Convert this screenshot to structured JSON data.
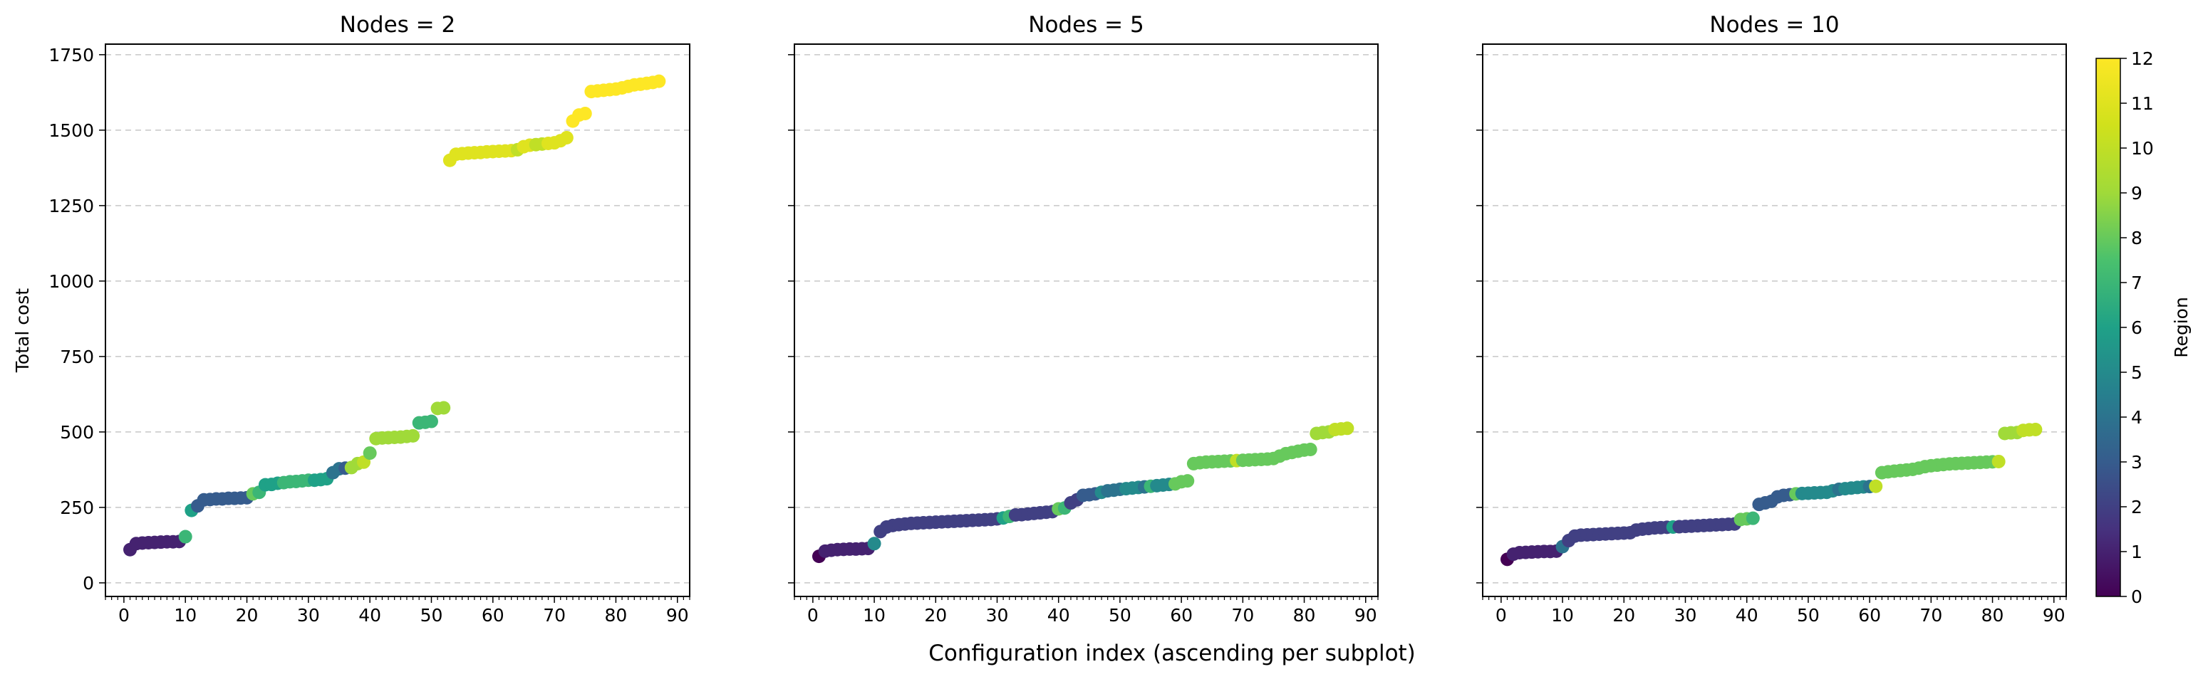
{
  "figure": {
    "supxlabel": "Configuration index (ascending per subplot)",
    "ylabel": "Total cost",
    "colorbar_label": "Region"
  },
  "chart_data": [
    {
      "type": "scatter",
      "title": "Nodes = 2",
      "xlabel": "",
      "ylabel": "Total cost",
      "xlim": [
        -3,
        92
      ],
      "ylim": [
        -45,
        1785
      ],
      "xticks": [
        0,
        10,
        20,
        30,
        40,
        50,
        60,
        70,
        80,
        90
      ],
      "yticks": [
        0,
        250,
        500,
        750,
        1000,
        1250,
        1500,
        1750
      ],
      "grid": "y-dashed",
      "colormap": "viridis",
      "color_range": [
        0,
        12
      ],
      "points": [
        [
          1,
          110,
          1
        ],
        [
          2,
          130,
          1
        ],
        [
          3,
          132,
          1
        ],
        [
          4,
          133,
          1
        ],
        [
          5,
          134,
          1
        ],
        [
          6,
          135,
          1
        ],
        [
          7,
          136,
          1
        ],
        [
          8,
          136,
          1
        ],
        [
          9,
          137,
          1
        ],
        [
          10,
          153,
          7
        ],
        [
          11,
          240,
          6
        ],
        [
          12,
          255,
          3
        ],
        [
          13,
          275,
          3
        ],
        [
          14,
          276,
          3
        ],
        [
          15,
          278,
          3
        ],
        [
          16,
          278,
          3
        ],
        [
          17,
          280,
          3
        ],
        [
          18,
          280,
          3
        ],
        [
          19,
          281,
          3
        ],
        [
          20,
          282,
          3
        ],
        [
          21,
          295,
          8
        ],
        [
          22,
          300,
          7
        ],
        [
          23,
          325,
          6
        ],
        [
          24,
          326,
          6
        ],
        [
          25,
          330,
          6
        ],
        [
          26,
          332,
          7
        ],
        [
          27,
          335,
          7
        ],
        [
          28,
          336,
          7
        ],
        [
          29,
          338,
          7
        ],
        [
          30,
          340,
          7
        ],
        [
          31,
          340,
          6
        ],
        [
          32,
          342,
          6
        ],
        [
          33,
          345,
          6
        ],
        [
          34,
          365,
          4
        ],
        [
          35,
          378,
          4
        ],
        [
          36,
          380,
          3
        ],
        [
          37,
          382,
          9
        ],
        [
          38,
          395,
          9
        ],
        [
          39,
          400,
          10
        ],
        [
          40,
          430,
          8
        ],
        [
          41,
          478,
          9
        ],
        [
          42,
          480,
          9
        ],
        [
          43,
          481,
          9
        ],
        [
          44,
          482,
          9
        ],
        [
          45,
          483,
          9
        ],
        [
          46,
          485,
          9
        ],
        [
          47,
          487,
          9
        ],
        [
          48,
          530,
          7
        ],
        [
          49,
          532,
          7
        ],
        [
          50,
          535,
          7
        ],
        [
          51,
          578,
          9
        ],
        [
          52,
          580,
          9
        ],
        [
          53,
          1400,
          11
        ],
        [
          54,
          1420,
          11
        ],
        [
          55,
          1422,
          11
        ],
        [
          56,
          1424,
          11
        ],
        [
          57,
          1425,
          11
        ],
        [
          58,
          1426,
          11
        ],
        [
          59,
          1428,
          11
        ],
        [
          60,
          1429,
          11
        ],
        [
          61,
          1430,
          11
        ],
        [
          62,
          1431,
          11
        ],
        [
          63,
          1432,
          11
        ],
        [
          64,
          1435,
          10
        ],
        [
          65,
          1445,
          11
        ],
        [
          66,
          1450,
          11
        ],
        [
          67,
          1452,
          10
        ],
        [
          68,
          1454,
          10
        ],
        [
          69,
          1456,
          11
        ],
        [
          70,
          1458,
          11
        ],
        [
          71,
          1465,
          11
        ],
        [
          72,
          1475,
          11
        ],
        [
          73,
          1530,
          12
        ],
        [
          74,
          1550,
          12
        ],
        [
          75,
          1555,
          12
        ],
        [
          76,
          1628,
          12
        ],
        [
          77,
          1630,
          12
        ],
        [
          78,
          1632,
          12
        ],
        [
          79,
          1634,
          12
        ],
        [
          80,
          1636,
          12
        ],
        [
          81,
          1640,
          12
        ],
        [
          82,
          1645,
          12
        ],
        [
          83,
          1650,
          12
        ],
        [
          84,
          1652,
          12
        ],
        [
          85,
          1655,
          12
        ],
        [
          86,
          1658,
          12
        ],
        [
          87,
          1662,
          12
        ]
      ]
    },
    {
      "type": "scatter",
      "title": "Nodes = 5",
      "xlabel": "",
      "ylabel": "",
      "xlim": [
        -3,
        92
      ],
      "ylim": [
        -45,
        1785
      ],
      "xticks": [
        0,
        10,
        20,
        30,
        40,
        50,
        60,
        70,
        80,
        90
      ],
      "yticks": [
        0,
        250,
        500,
        750,
        1000,
        1250,
        1500,
        1750
      ],
      "grid": "y-dashed",
      "colormap": "viridis",
      "color_range": [
        0,
        12
      ],
      "points": [
        [
          1,
          88,
          0
        ],
        [
          2,
          105,
          1
        ],
        [
          3,
          108,
          1
        ],
        [
          4,
          110,
          1
        ],
        [
          5,
          111,
          1
        ],
        [
          6,
          112,
          1
        ],
        [
          7,
          112,
          1
        ],
        [
          8,
          113,
          1
        ],
        [
          9,
          114,
          1
        ],
        [
          10,
          130,
          5
        ],
        [
          11,
          170,
          2
        ],
        [
          12,
          185,
          2
        ],
        [
          13,
          190,
          2
        ],
        [
          14,
          193,
          2
        ],
        [
          15,
          195,
          2
        ],
        [
          16,
          197,
          2
        ],
        [
          17,
          198,
          2
        ],
        [
          18,
          199,
          2
        ],
        [
          19,
          200,
          2
        ],
        [
          20,
          201,
          2
        ],
        [
          21,
          202,
          2
        ],
        [
          22,
          203,
          2
        ],
        [
          23,
          204,
          2
        ],
        [
          24,
          205,
          2
        ],
        [
          25,
          206,
          2
        ],
        [
          26,
          207,
          2
        ],
        [
          27,
          208,
          2
        ],
        [
          28,
          209,
          2
        ],
        [
          29,
          210,
          2
        ],
        [
          30,
          212,
          2
        ],
        [
          31,
          215,
          6
        ],
        [
          32,
          220,
          7
        ],
        [
          33,
          225,
          2
        ],
        [
          34,
          226,
          2
        ],
        [
          35,
          228,
          2
        ],
        [
          36,
          230,
          2
        ],
        [
          37,
          232,
          2
        ],
        [
          38,
          234,
          2
        ],
        [
          39,
          236,
          2
        ],
        [
          40,
          245,
          8
        ],
        [
          41,
          248,
          7
        ],
        [
          42,
          265,
          2
        ],
        [
          43,
          275,
          2
        ],
        [
          44,
          290,
          3
        ],
        [
          45,
          292,
          3
        ],
        [
          46,
          295,
          3
        ],
        [
          47,
          300,
          5
        ],
        [
          48,
          305,
          4
        ],
        [
          49,
          307,
          4
        ],
        [
          50,
          310,
          4
        ],
        [
          51,
          312,
          5
        ],
        [
          52,
          314,
          5
        ],
        [
          53,
          316,
          5
        ],
        [
          54,
          318,
          4
        ],
        [
          55,
          320,
          7
        ],
        [
          56,
          322,
          5
        ],
        [
          57,
          324,
          5
        ],
        [
          58,
          326,
          5
        ],
        [
          59,
          328,
          8
        ],
        [
          60,
          335,
          8
        ],
        [
          61,
          338,
          8
        ],
        [
          62,
          395,
          8
        ],
        [
          63,
          398,
          8
        ],
        [
          64,
          400,
          8
        ],
        [
          65,
          401,
          8
        ],
        [
          66,
          402,
          8
        ],
        [
          67,
          403,
          8
        ],
        [
          68,
          404,
          8
        ],
        [
          69,
          405,
          10
        ],
        [
          70,
          406,
          8
        ],
        [
          71,
          407,
          8
        ],
        [
          72,
          408,
          8
        ],
        [
          73,
          409,
          8
        ],
        [
          74,
          410,
          8
        ],
        [
          75,
          412,
          8
        ],
        [
          76,
          420,
          8
        ],
        [
          77,
          428,
          8
        ],
        [
          78,
          432,
          8
        ],
        [
          79,
          436,
          8
        ],
        [
          80,
          440,
          8
        ],
        [
          81,
          442,
          8
        ],
        [
          82,
          495,
          9
        ],
        [
          83,
          498,
          9
        ],
        [
          84,
          500,
          9
        ],
        [
          85,
          508,
          10
        ],
        [
          86,
          510,
          10
        ],
        [
          87,
          512,
          10
        ]
      ]
    },
    {
      "type": "scatter",
      "title": "Nodes = 10",
      "xlabel": "",
      "ylabel": "",
      "xlim": [
        -3,
        92
      ],
      "ylim": [
        -45,
        1785
      ],
      "xticks": [
        0,
        10,
        20,
        30,
        40,
        50,
        60,
        70,
        80,
        90
      ],
      "yticks": [
        0,
        250,
        500,
        750,
        1000,
        1250,
        1500,
        1750
      ],
      "grid": "y-dashed",
      "colormap": "viridis",
      "color_range": [
        0,
        12
      ],
      "points": [
        [
          1,
          78,
          0
        ],
        [
          2,
          95,
          1
        ],
        [
          3,
          100,
          1
        ],
        [
          4,
          101,
          1
        ],
        [
          5,
          102,
          1
        ],
        [
          6,
          103,
          1
        ],
        [
          7,
          104,
          1
        ],
        [
          8,
          104,
          1
        ],
        [
          9,
          105,
          1
        ],
        [
          10,
          120,
          4
        ],
        [
          11,
          140,
          2
        ],
        [
          12,
          155,
          2
        ],
        [
          13,
          158,
          2
        ],
        [
          14,
          159,
          2
        ],
        [
          15,
          160,
          2
        ],
        [
          16,
          161,
          2
        ],
        [
          17,
          162,
          2
        ],
        [
          18,
          163,
          2
        ],
        [
          19,
          164,
          2
        ],
        [
          20,
          165,
          2
        ],
        [
          21,
          166,
          2
        ],
        [
          22,
          175,
          2
        ],
        [
          23,
          178,
          2
        ],
        [
          24,
          180,
          2
        ],
        [
          25,
          182,
          2
        ],
        [
          26,
          183,
          2
        ],
        [
          27,
          184,
          2
        ],
        [
          28,
          185,
          6
        ],
        [
          29,
          186,
          2
        ],
        [
          30,
          187,
          2
        ],
        [
          31,
          188,
          2
        ],
        [
          32,
          189,
          2
        ],
        [
          33,
          190,
          2
        ],
        [
          34,
          191,
          2
        ],
        [
          35,
          192,
          2
        ],
        [
          36,
          193,
          2
        ],
        [
          37,
          194,
          2
        ],
        [
          38,
          195,
          2
        ],
        [
          39,
          210,
          8
        ],
        [
          40,
          212,
          8
        ],
        [
          41,
          214,
          7
        ],
        [
          42,
          260,
          3
        ],
        [
          43,
          265,
          3
        ],
        [
          44,
          270,
          3
        ],
        [
          45,
          285,
          3
        ],
        [
          46,
          290,
          3
        ],
        [
          47,
          292,
          3
        ],
        [
          48,
          295,
          8
        ],
        [
          49,
          296,
          5
        ],
        [
          50,
          297,
          5
        ],
        [
          51,
          298,
          5
        ],
        [
          52,
          299,
          5
        ],
        [
          53,
          300,
          5
        ],
        [
          54,
          305,
          5
        ],
        [
          55,
          310,
          4
        ],
        [
          56,
          312,
          5
        ],
        [
          57,
          314,
          5
        ],
        [
          58,
          316,
          5
        ],
        [
          59,
          318,
          5
        ],
        [
          60,
          319,
          4
        ],
        [
          61,
          320,
          10
        ],
        [
          62,
          365,
          8
        ],
        [
          63,
          368,
          8
        ],
        [
          64,
          370,
          8
        ],
        [
          65,
          372,
          8
        ],
        [
          66,
          374,
          8
        ],
        [
          67,
          376,
          8
        ],
        [
          68,
          380,
          8
        ],
        [
          69,
          385,
          8
        ],
        [
          70,
          388,
          8
        ],
        [
          71,
          390,
          8
        ],
        [
          72,
          392,
          8
        ],
        [
          73,
          394,
          8
        ],
        [
          74,
          395,
          8
        ],
        [
          75,
          396,
          8
        ],
        [
          76,
          397,
          8
        ],
        [
          77,
          398,
          8
        ],
        [
          78,
          399,
          8
        ],
        [
          79,
          400,
          8
        ],
        [
          80,
          401,
          8
        ],
        [
          81,
          402,
          10
        ],
        [
          82,
          495,
          9
        ],
        [
          83,
          497,
          9
        ],
        [
          84,
          498,
          9
        ],
        [
          85,
          505,
          10
        ],
        [
          86,
          507,
          10
        ],
        [
          87,
          508,
          10
        ]
      ]
    }
  ],
  "colorbar": {
    "label": "Region",
    "ticks": [
      0,
      1,
      2,
      3,
      4,
      5,
      6,
      7,
      8,
      9,
      10,
      11,
      12
    ],
    "colormap": "viridis"
  }
}
